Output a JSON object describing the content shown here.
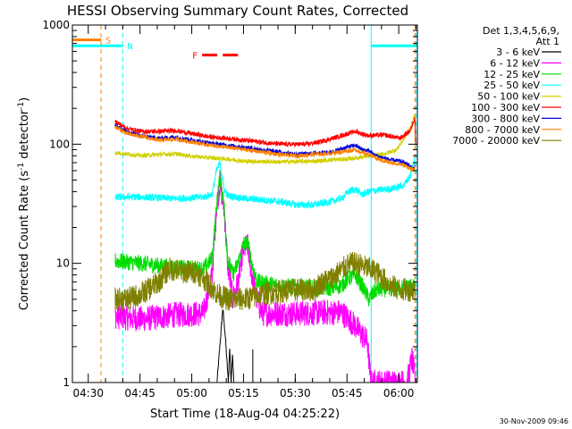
{
  "chart_data": {
    "type": "line",
    "title": "HESSI Observing Summary Count Rates, Corrected",
    "xlabel": "Start Time (18-Aug-04 04:25:22)",
    "ylabel": "Corrected Count Rate (s",
    "ylabel_sup": "-1",
    "ylabel_tail": " detector",
    "ylabel_sup2": "-1",
    "ylabel_close": ")",
    "yscale": "log",
    "ylim": [
      1,
      1000
    ],
    "xlim_minutes": [
      0,
      100
    ],
    "x_ticks": [
      {
        "label": "04:30",
        "t": 4.6
      },
      {
        "label": "04:45",
        "t": 19.6
      },
      {
        "label": "05:00",
        "t": 34.6
      },
      {
        "label": "05:15",
        "t": 49.6
      },
      {
        "label": "05:30",
        "t": 64.6
      },
      {
        "label": "05:45",
        "t": 79.6
      },
      {
        "label": "06:00",
        "t": 94.6
      }
    ],
    "y_ticks": [
      {
        "label": "1",
        "v": 1
      },
      {
        "label": "10",
        "v": 10
      },
      {
        "label": "100",
        "v": 100
      },
      {
        "label": "1000",
        "v": 1000
      }
    ],
    "legend_header": [
      "Det 1,3,4,5,6,9,",
      "Att 1"
    ],
    "footer_timestamp": "30-Nov-2009 09:46",
    "flags": [
      {
        "label": "S",
        "color": "#ff8000",
        "segments": [
          [
            0,
            8.3
          ]
        ],
        "v": 750
      },
      {
        "label": "N",
        "color": "#00ffff",
        "segments": [
          [
            0,
            14.6
          ],
          [
            86.6,
            100
          ]
        ],
        "v": 670
      },
      {
        "label": "F",
        "color": "#ff0000",
        "segments": [
          [
            37.6,
            42.0
          ],
          [
            43.6,
            48.0
          ]
        ],
        "v": 560,
        "dashed": true
      }
    ],
    "vlines": [
      {
        "t": 8.3,
        "color": "#ff8000",
        "dashed": true
      },
      {
        "t": 14.6,
        "color": "#00ffff",
        "dashed": true
      },
      {
        "t": 86.6,
        "color": "#00ffff",
        "dashed": false
      },
      {
        "t": 99.3,
        "color": "#ff8000",
        "dashed": true
      },
      {
        "t": 99.6,
        "color": "#00ffff",
        "dashed": true
      }
    ],
    "series": [
      {
        "name": "3 - 6 keV",
        "color": "#000000",
        "noise": 0.02,
        "points": [
          [
            41.9,
            1
          ],
          [
            43.0,
            2.5
          ],
          [
            43.6,
            4.2
          ],
          [
            44.3,
            2.5
          ],
          [
            44.8,
            1.5
          ],
          [
            45.2,
            1
          ],
          [
            45.6,
            2
          ],
          [
            46.0,
            1
          ],
          [
            46.4,
            1.8
          ],
          [
            46.8,
            1
          ]
        ],
        "extra_spikes": [
          [
            52.3,
            1,
            1.9
          ]
        ]
      },
      {
        "name": "6 - 12 keV",
        "color": "#ff00ff",
        "noise": 0.11,
        "points": [
          [
            12.4,
            3.6
          ],
          [
            20,
            3.4
          ],
          [
            30,
            3.7
          ],
          [
            38,
            3.8
          ],
          [
            40.5,
            8
          ],
          [
            41.8,
            30
          ],
          [
            42.8,
            48
          ],
          [
            44,
            28
          ],
          [
            45,
            10
          ],
          [
            46.5,
            5
          ],
          [
            48,
            7
          ],
          [
            49.5,
            13
          ],
          [
            50.8,
            14
          ],
          [
            52,
            8
          ],
          [
            53.5,
            5
          ],
          [
            55,
            3.8
          ],
          [
            65,
            3.8
          ],
          [
            78,
            3.9
          ],
          [
            82,
            3.0
          ],
          [
            84,
            2.5
          ],
          [
            85.5,
            2.2
          ],
          [
            86.5,
            1.0
          ],
          [
            88,
            1
          ],
          [
            97,
            1
          ],
          [
            98.5,
            1.6
          ],
          [
            99.4,
            1
          ]
        ]
      },
      {
        "name": "12 - 25 keV",
        "color": "#00dd00",
        "noise": 0.07,
        "points": [
          [
            12.4,
            10.5
          ],
          [
            20,
            10
          ],
          [
            30,
            9.2
          ],
          [
            38,
            9.0
          ],
          [
            40.5,
            11
          ],
          [
            41.8,
            30
          ],
          [
            42.8,
            55
          ],
          [
            44,
            30
          ],
          [
            45,
            11
          ],
          [
            46.5,
            8
          ],
          [
            48,
            10
          ],
          [
            49.5,
            14
          ],
          [
            50.8,
            15
          ],
          [
            52,
            10
          ],
          [
            53.5,
            7
          ],
          [
            60,
            6.5
          ],
          [
            70,
            6.2
          ],
          [
            75,
            6.2
          ],
          [
            78,
            6.5
          ],
          [
            80,
            7.5
          ],
          [
            82,
            8
          ],
          [
            84,
            6.5
          ],
          [
            86,
            5
          ],
          [
            88,
            6
          ],
          [
            95,
            6.2
          ],
          [
            98.8,
            6.5
          ],
          [
            99.4,
            6
          ]
        ]
      },
      {
        "name": "25 - 50 keV",
        "color": "#00ffff",
        "noise": 0.03,
        "points": [
          [
            12.4,
            36
          ],
          [
            20,
            36
          ],
          [
            30,
            35
          ],
          [
            38,
            36
          ],
          [
            40.5,
            38
          ],
          [
            41.8,
            60
          ],
          [
            42.8,
            70
          ],
          [
            44,
            42
          ],
          [
            45,
            37
          ],
          [
            50,
            35
          ],
          [
            60,
            33
          ],
          [
            65,
            31
          ],
          [
            70,
            31
          ],
          [
            75,
            33
          ],
          [
            78,
            35
          ],
          [
            80,
            40
          ],
          [
            82,
            42
          ],
          [
            84,
            38
          ],
          [
            86,
            40
          ],
          [
            88,
            41
          ],
          [
            92,
            42
          ],
          [
            96,
            45
          ],
          [
            98,
            55
          ],
          [
            99.2,
            75
          ],
          [
            99.4,
            50
          ]
        ]
      },
      {
        "name": "50 - 100 keV",
        "color": "#d0d000",
        "noise": 0.018,
        "points": [
          [
            12.4,
            85
          ],
          [
            20,
            80
          ],
          [
            25,
            82
          ],
          [
            30,
            83
          ],
          [
            35,
            79
          ],
          [
            40,
            77
          ],
          [
            45,
            75
          ],
          [
            50,
            72
          ],
          [
            60,
            71
          ],
          [
            70,
            72
          ],
          [
            75,
            74
          ],
          [
            80,
            75
          ],
          [
            86,
            80
          ],
          [
            90,
            82
          ],
          [
            94,
            90
          ],
          [
            96,
            110
          ],
          [
            98,
            140
          ],
          [
            99.3,
            175
          ],
          [
            99.5,
            80
          ]
        ]
      },
      {
        "name": "100 - 300 keV",
        "color": "#ff0000",
        "noise": 0.02,
        "points": [
          [
            12.4,
            155
          ],
          [
            16,
            135
          ],
          [
            20,
            128
          ],
          [
            25,
            128
          ],
          [
            30,
            130
          ],
          [
            35,
            122
          ],
          [
            40,
            115
          ],
          [
            45,
            112
          ],
          [
            50,
            108
          ],
          [
            60,
            100
          ],
          [
            68,
            100
          ],
          [
            72,
            105
          ],
          [
            78,
            118
          ],
          [
            82,
            128
          ],
          [
            84,
            122
          ],
          [
            86,
            118
          ],
          [
            90,
            120
          ],
          [
            95,
            112
          ],
          [
            98,
            130
          ],
          [
            99.3,
            170
          ],
          [
            99.6,
            85
          ]
        ]
      },
      {
        "name": "300 - 800 keV",
        "color": "#0000dd",
        "noise": 0.018,
        "points": [
          [
            12.4,
            145
          ],
          [
            16,
            125
          ],
          [
            20,
            118
          ],
          [
            25,
            112
          ],
          [
            30,
            115
          ],
          [
            35,
            108
          ],
          [
            40,
            102
          ],
          [
            45,
            98
          ],
          [
            50,
            94
          ],
          [
            60,
            86
          ],
          [
            65,
            82
          ],
          [
            70,
            84
          ],
          [
            75,
            86
          ],
          [
            80,
            95
          ],
          [
            82,
            98
          ],
          [
            84,
            90
          ],
          [
            86,
            88
          ],
          [
            88,
            80
          ],
          [
            92,
            74
          ],
          [
            95,
            72
          ],
          [
            97,
            68
          ],
          [
            99,
            62
          ],
          [
            99.3,
            66
          ]
        ]
      },
      {
        "name": "800 - 7000 keV",
        "color": "#ff8000",
        "noise": 0.018,
        "points": [
          [
            12.4,
            140
          ],
          [
            16,
            122
          ],
          [
            20,
            116
          ],
          [
            25,
            108
          ],
          [
            30,
            110
          ],
          [
            35,
            104
          ],
          [
            40,
            98
          ],
          [
            45,
            94
          ],
          [
            50,
            90
          ],
          [
            60,
            82
          ],
          [
            65,
            80
          ],
          [
            70,
            82
          ],
          [
            75,
            84
          ],
          [
            80,
            88
          ],
          [
            82,
            90
          ],
          [
            84,
            85
          ],
          [
            86,
            82
          ],
          [
            88,
            76
          ],
          [
            92,
            70
          ],
          [
            95,
            68
          ],
          [
            97,
            65
          ],
          [
            99,
            60
          ],
          [
            99.3,
            64
          ]
        ]
      },
      {
        "name": "7000 - 20000 keV",
        "color": "#808000",
        "noise": 0.1,
        "points": [
          [
            12.4,
            5
          ],
          [
            16,
            5
          ],
          [
            20,
            5.5
          ],
          [
            25,
            7
          ],
          [
            28,
            9
          ],
          [
            32,
            8.5
          ],
          [
            36,
            8.5
          ],
          [
            38,
            7.5
          ],
          [
            40,
            6.5
          ],
          [
            42,
            5.5
          ],
          [
            45,
            5
          ],
          [
            50,
            5
          ],
          [
            55,
            5.5
          ],
          [
            60,
            5.8
          ],
          [
            65,
            6
          ],
          [
            70,
            6
          ],
          [
            72,
            6.8
          ],
          [
            75,
            7.5
          ],
          [
            78,
            8.8
          ],
          [
            80,
            9.8
          ],
          [
            82,
            10
          ],
          [
            84,
            9.5
          ],
          [
            86,
            9
          ],
          [
            88,
            8.5
          ],
          [
            90,
            7.5
          ],
          [
            92,
            6.5
          ],
          [
            95,
            6
          ],
          [
            98,
            6
          ],
          [
            99.4,
            6
          ]
        ]
      }
    ]
  }
}
